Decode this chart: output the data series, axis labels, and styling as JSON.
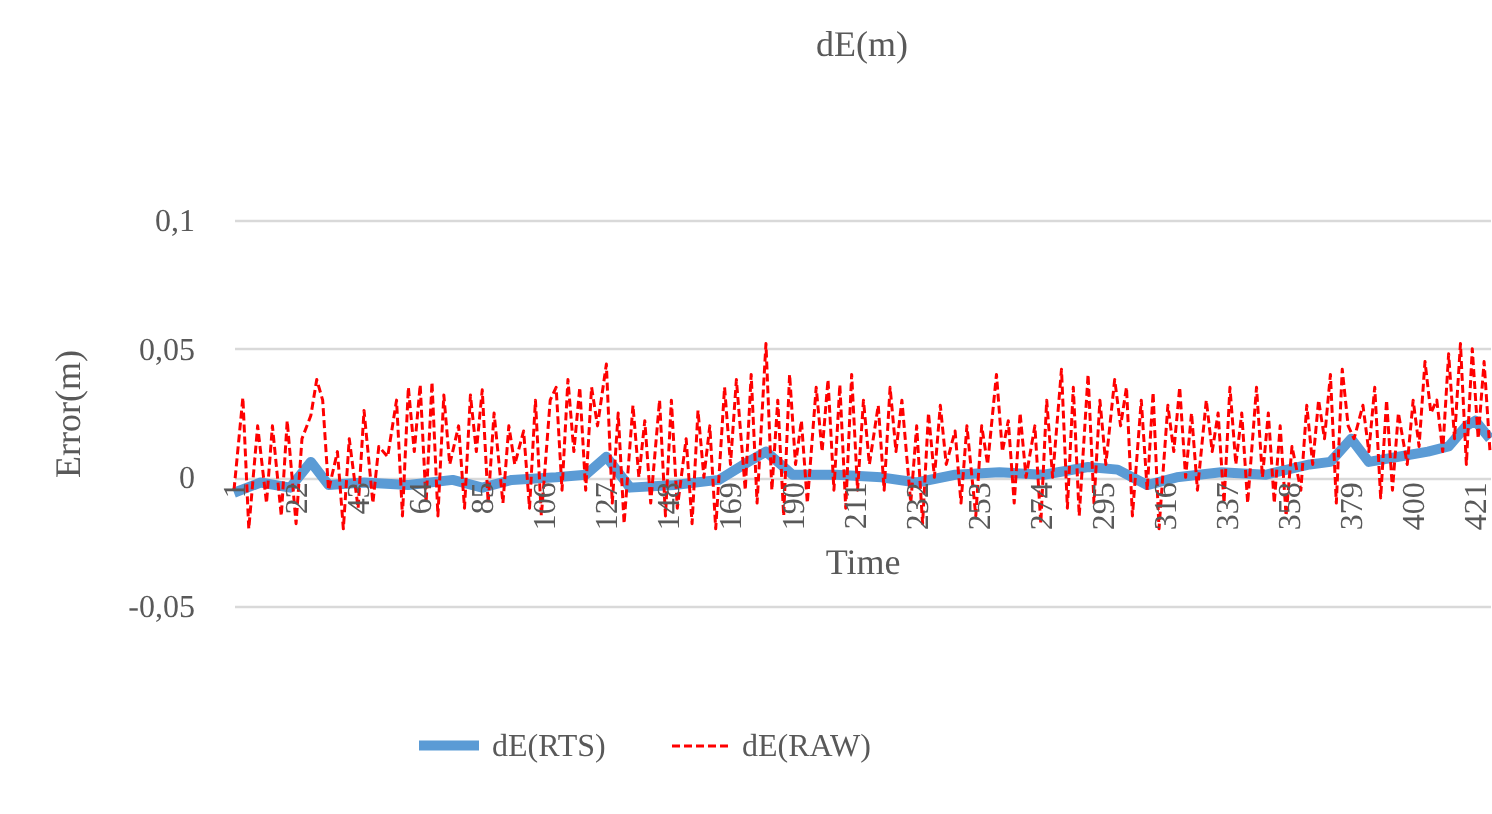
{
  "chart_data": {
    "type": "line",
    "title": "dE(m)",
    "xlabel": "Time",
    "ylabel": "Error(m)",
    "xlim": [
      1,
      426
    ],
    "xticks": [
      1,
      22,
      43,
      64,
      85,
      106,
      127,
      148,
      169,
      190,
      211,
      232,
      253,
      274,
      295,
      316,
      337,
      358,
      379,
      400,
      421
    ],
    "ylim": [
      -0.05,
      0.1
    ],
    "yticks": [
      {
        "value": -0.05,
        "label": "-0,05"
      },
      0,
      {
        "value": 0.05,
        "label": "0,05"
      },
      {
        "value": 0.1,
        "label": "0,1"
      }
    ],
    "grid": "y",
    "legend": "bottom",
    "series": [
      {
        "name": "dE(RTS)",
        "color": "#5b9bd5",
        "line_style": "solid",
        "x": [
          1,
          10,
          20,
          27,
          33,
          45,
          60,
          75,
          85,
          95,
          110,
          120,
          127,
          135,
          150,
          165,
          175,
          181,
          190,
          205,
          220,
          232,
          245,
          260,
          275,
          290,
          300,
          310,
          320,
          335,
          350,
          365,
          372,
          379,
          385,
          395,
          405,
          412,
          418,
          421,
          426
        ],
        "values": [
          -0.006,
          -0.002,
          -0.004,
          0.006,
          -0.003,
          -0.002,
          -0.003,
          -0.001,
          -0.004,
          -0.001,
          0.0,
          0.001,
          0.008,
          -0.004,
          -0.003,
          -0.001,
          0.006,
          0.01,
          0.001,
          0.001,
          0.0,
          -0.002,
          0.001,
          0.002,
          0.001,
          0.004,
          0.003,
          -0.003,
          0.0,
          0.002,
          0.001,
          0.005,
          0.006,
          0.015,
          0.006,
          0.008,
          0.01,
          0.012,
          0.02,
          0.022,
          0.015
        ]
      },
      {
        "name": "dE(RAW)",
        "color": "#ff0000",
        "line_style": "dashed",
        "x": [
          1,
          4,
          6,
          9,
          12,
          14,
          17,
          19,
          22,
          24,
          27,
          29,
          31,
          33,
          36,
          38,
          40,
          43,
          45,
          48,
          50,
          53,
          56,
          58,
          60,
          62,
          64,
          66,
          68,
          70,
          72,
          74,
          77,
          79,
          81,
          83,
          85,
          87,
          89,
          92,
          94,
          96,
          99,
          101,
          103,
          105,
          108,
          110,
          112,
          114,
          116,
          118,
          120,
          122,
          124,
          127,
          129,
          131,
          133,
          136,
          138,
          140,
          142,
          145,
          147,
          149,
          151,
          154,
          156,
          158,
          160,
          162,
          164,
          167,
          169,
          171,
          174,
          176,
          178,
          181,
          183,
          185,
          187,
          189,
          191,
          193,
          195,
          198,
          200,
          202,
          204,
          206,
          208,
          210,
          212,
          214,
          216,
          219,
          221,
          223,
          225,
          227,
          230,
          232,
          234,
          236,
          238,
          240,
          242,
          245,
          247,
          249,
          252,
          254,
          256,
          259,
          261,
          263,
          265,
          267,
          269,
          272,
          274,
          276,
          278,
          281,
          283,
          285,
          287,
          290,
          292,
          294,
          296,
          299,
          301,
          303,
          305,
          308,
          310,
          312,
          314,
          317,
          319,
          321,
          323,
          325,
          327,
          330,
          332,
          334,
          336,
          338,
          340,
          342,
          344,
          347,
          349,
          351,
          353,
          355,
          357,
          359,
          362,
          364,
          366,
          368,
          370,
          372,
          374,
          376,
          378,
          380,
          383,
          385,
          387,
          389,
          391,
          393,
          395,
          398,
          400,
          402,
          404,
          406,
          408,
          410,
          412,
          414,
          416,
          418,
          420,
          422,
          424,
          426
        ],
        "values": [
          -0.005,
          0.031,
          -0.02,
          0.02,
          -0.01,
          0.02,
          -0.015,
          0.022,
          -0.018,
          0.015,
          0.024,
          0.038,
          0.03,
          -0.005,
          0.01,
          -0.02,
          0.015,
          -0.012,
          0.026,
          -0.01,
          0.012,
          0.008,
          0.03,
          -0.015,
          0.035,
          0.01,
          0.036,
          -0.01,
          0.037,
          -0.015,
          0.032,
          0.005,
          0.02,
          -0.012,
          0.032,
          0.01,
          0.034,
          -0.01,
          0.025,
          -0.01,
          0.02,
          0.005,
          0.018,
          -0.012,
          0.03,
          -0.015,
          0.03,
          0.035,
          -0.005,
          0.038,
          0.01,
          0.035,
          -0.005,
          0.035,
          0.02,
          0.044,
          -0.01,
          0.025,
          -0.018,
          0.028,
          0.0,
          0.022,
          -0.01,
          0.03,
          -0.015,
          0.03,
          -0.012,
          0.015,
          -0.018,
          0.026,
          0.0,
          0.02,
          -0.02,
          0.035,
          0.005,
          0.038,
          -0.005,
          0.04,
          -0.01,
          0.052,
          -0.005,
          0.03,
          -0.015,
          0.04,
          0.005,
          0.022,
          -0.01,
          0.035,
          0.01,
          0.038,
          -0.005,
          0.036,
          -0.012,
          0.04,
          -0.005,
          0.03,
          0.005,
          0.028,
          -0.005,
          0.035,
          0.01,
          0.03,
          -0.01,
          0.02,
          -0.018,
          0.025,
          0.0,
          0.028,
          0.005,
          0.018,
          -0.01,
          0.02,
          -0.015,
          0.02,
          0.005,
          0.04,
          0.01,
          0.022,
          -0.01,
          0.025,
          0.0,
          0.02,
          -0.018,
          0.03,
          0.0,
          0.042,
          -0.012,
          0.035,
          -0.015,
          0.04,
          -0.01,
          0.03,
          0.005,
          0.038,
          0.02,
          0.035,
          -0.015,
          0.03,
          -0.005,
          0.033,
          -0.02,
          0.028,
          0.01,
          0.035,
          0.0,
          0.025,
          -0.005,
          0.03,
          0.01,
          0.025,
          -0.01,
          0.035,
          0.005,
          0.025,
          -0.01,
          0.035,
          0.0,
          0.025,
          -0.01,
          0.02,
          -0.015,
          0.012,
          -0.005,
          0.028,
          0.005,
          0.03,
          0.015,
          0.04,
          -0.01,
          0.042,
          0.02,
          0.015,
          0.028,
          0.01,
          0.035,
          -0.008,
          0.03,
          -0.005,
          0.025,
          0.005,
          0.03,
          0.012,
          0.045,
          0.025,
          0.03,
          0.01,
          0.048,
          0.015,
          0.052,
          0.005,
          0.05,
          0.015,
          0.045,
          0.01
        ]
      }
    ]
  }
}
